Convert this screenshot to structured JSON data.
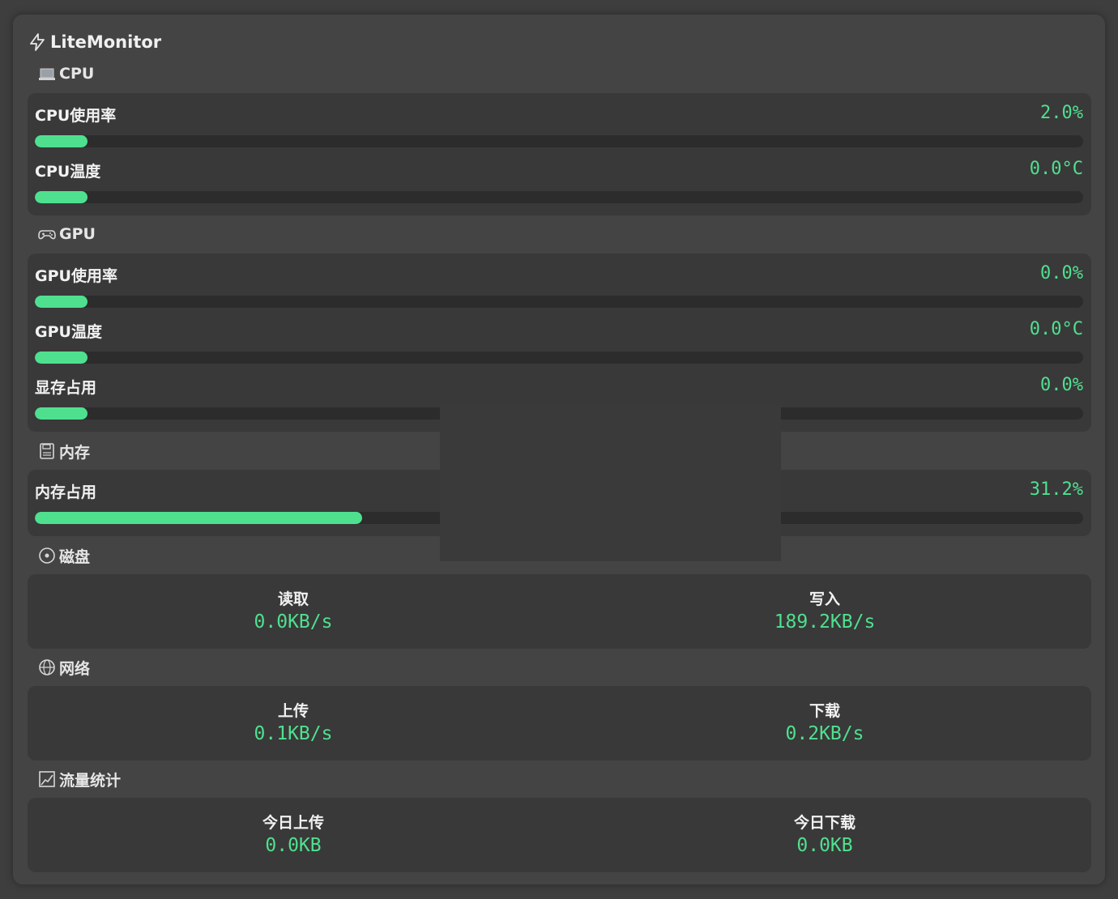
{
  "app": {
    "title": "LiteMonitor",
    "icon": "lightning-icon"
  },
  "colors": {
    "accent": "#4fe08f",
    "panel": "#444444",
    "card": "#393939",
    "track": "#2c2c2c"
  },
  "sections": {
    "cpu": {
      "title": "CPU",
      "icon": "laptop-icon",
      "metrics": [
        {
          "label": "CPU使用率",
          "value": "2.0%",
          "fill": 0.05
        },
        {
          "label": "CPU温度",
          "value": "0.0°C",
          "fill": 0.05
        }
      ]
    },
    "gpu": {
      "title": "GPU",
      "icon": "gamepad-icon",
      "metrics": [
        {
          "label": "GPU使用率",
          "value": "0.0%",
          "fill": 0.05
        },
        {
          "label": "GPU温度",
          "value": "0.0°C",
          "fill": 0.05
        },
        {
          "label": "显存占用",
          "value": "0.0%",
          "fill": 0.05
        }
      ]
    },
    "memory": {
      "title": "内存",
      "icon": "floppy-icon",
      "metrics": [
        {
          "label": "内存占用",
          "value": "31.2%",
          "fill": 0.312
        }
      ]
    },
    "disk": {
      "title": "磁盘",
      "icon": "disk-icon",
      "read_label": "读取",
      "read_value": "0.0KB/s",
      "write_label": "写入",
      "write_value": "189.2KB/s"
    },
    "network": {
      "title": "网络",
      "icon": "globe-icon",
      "up_label": "上传",
      "up_value": "0.1KB/s",
      "down_label": "下载",
      "down_value": "0.2KB/s"
    },
    "traffic": {
      "title": "流量统计",
      "icon": "chart-icon",
      "today_up_label": "今日上传",
      "today_up_value": "0.0KB",
      "today_down_label": "今日下载",
      "today_down_value": "0.0KB"
    }
  }
}
